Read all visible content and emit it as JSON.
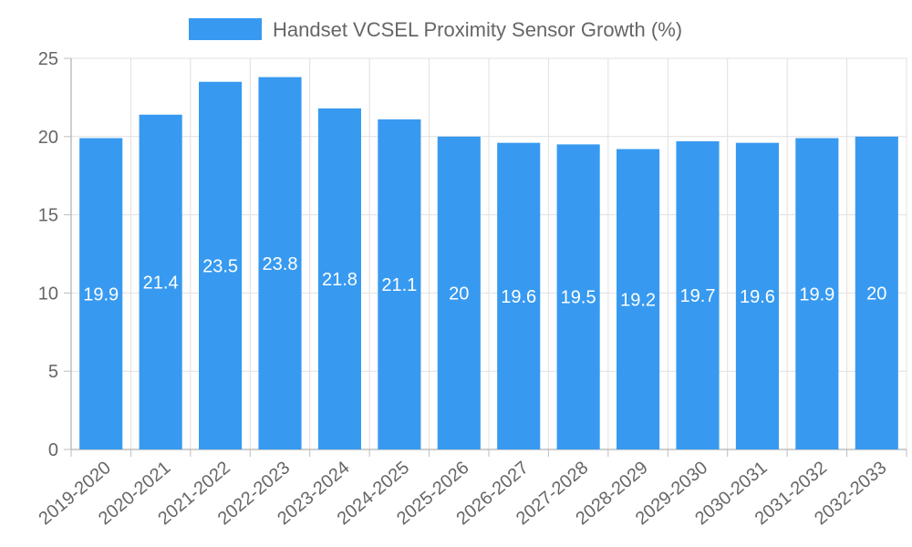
{
  "chart_data": {
    "type": "bar",
    "legend": "Handset VCSEL Proximity Sensor Growth (%)",
    "categories": [
      "2019-2020",
      "2020-2021",
      "2021-2022",
      "2022-2023",
      "2023-2024",
      "2024-2025",
      "2025-2026",
      "2026-2027",
      "2027-2028",
      "2028-2029",
      "2029-2030",
      "2030-2031",
      "2031-2032",
      "2032-2033"
    ],
    "series": [
      {
        "name": "Handset VCSEL Proximity Sensor Growth (%)",
        "values": [
          19.9,
          21.4,
          23.5,
          23.8,
          21.8,
          21.1,
          20,
          19.6,
          19.5,
          19.2,
          19.7,
          19.6,
          19.9,
          20
        ]
      }
    ],
    "yticks": [
      0,
      5,
      10,
      15,
      20,
      25
    ],
    "ylim": [
      0,
      25
    ],
    "grid": true,
    "legend_position": "top-center",
    "bar_color": "#379af0",
    "xlabel": "",
    "ylabel": ""
  }
}
